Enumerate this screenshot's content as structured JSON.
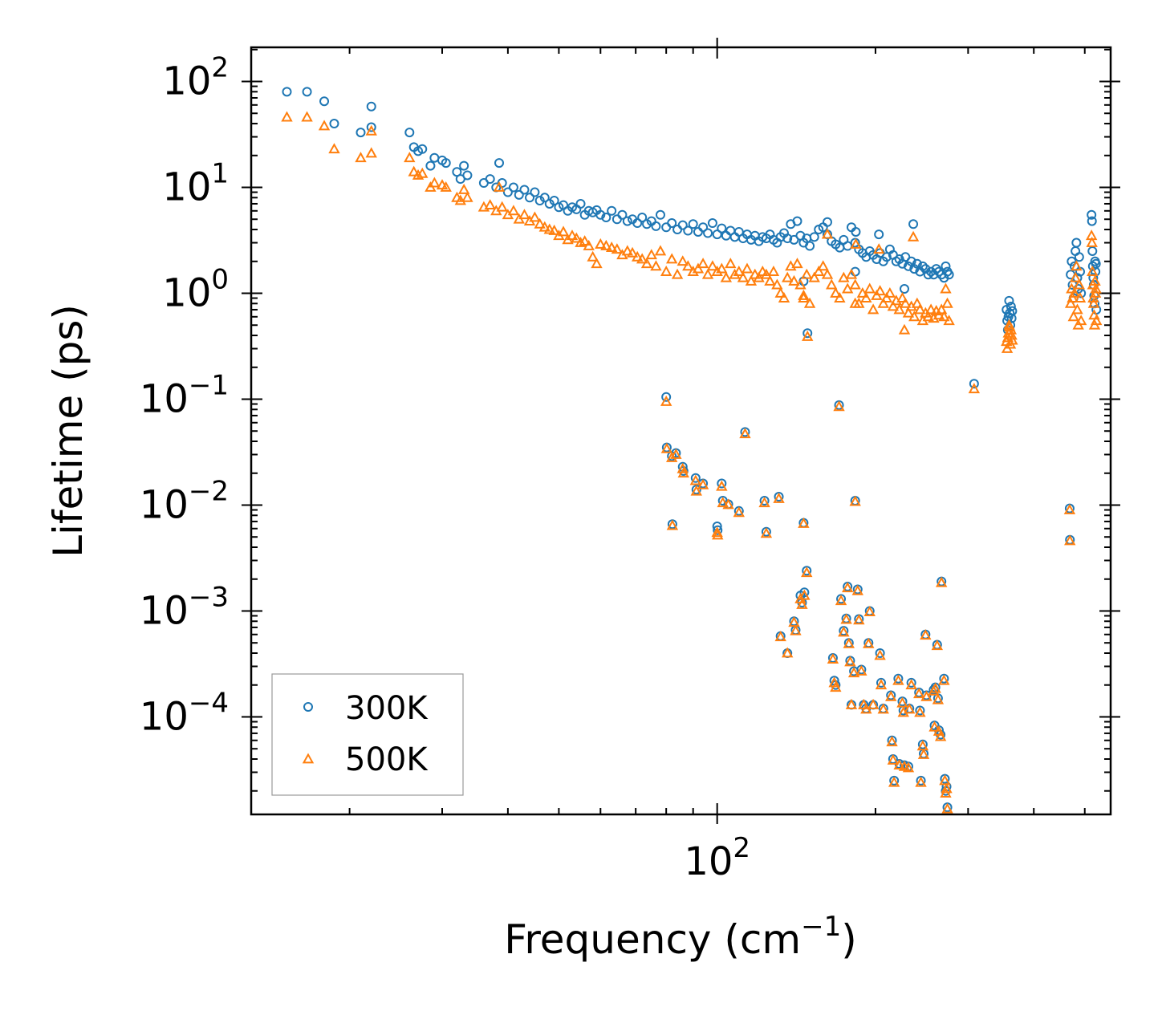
{
  "chart_data": {
    "type": "scatter",
    "xscale": "log",
    "yscale": "log",
    "xlabel": "Frequency (cm",
    "xlabel_superscript": "−1",
    "xlabel_suffix": ")",
    "ylabel": "Lifetime (ps)",
    "xlim": [
      13,
      560
    ],
    "ylim": [
      1.2e-05,
      210
    ],
    "x_tick_labels": [
      {
        "value": 100,
        "base": "10",
        "exp": "2"
      }
    ],
    "y_tick_labels": [
      {
        "value": 100,
        "base": "10",
        "exp": "2"
      },
      {
        "value": 10,
        "base": "10",
        "exp": "1"
      },
      {
        "value": 1,
        "base": "10",
        "exp": "0"
      },
      {
        "value": 0.1,
        "base": "10",
        "exp": "−1"
      },
      {
        "value": 0.01,
        "base": "10",
        "exp": "−2"
      },
      {
        "value": 0.001,
        "base": "10",
        "exp": "−3"
      },
      {
        "value": 0.0001,
        "base": "10",
        "exp": "−4"
      }
    ],
    "legend_position": "lower-left",
    "series": [
      {
        "name": "300K",
        "marker": "circle",
        "color": "#1f77b4"
      },
      {
        "name": "500K",
        "marker": "triangle",
        "color": "#ff7f0e"
      }
    ],
    "points": [
      [
        15.2,
        80,
        46
      ],
      [
        16.6,
        80,
        46
      ],
      [
        17.9,
        65,
        38
      ],
      [
        18.7,
        40,
        23
      ],
      [
        21.0,
        33,
        19
      ],
      [
        22.0,
        37,
        21
      ],
      [
        22.0,
        58,
        34
      ],
      [
        26.0,
        33,
        19
      ],
      [
        26.5,
        24,
        14
      ],
      [
        27.0,
        22,
        13
      ],
      [
        27.5,
        23,
        13.5
      ],
      [
        28.5,
        16,
        10
      ],
      [
        29.0,
        19,
        11
      ],
      [
        30.0,
        18,
        10.5
      ],
      [
        30.5,
        17,
        10
      ],
      [
        32.0,
        14,
        8
      ],
      [
        32.5,
        12,
        7.5
      ],
      [
        33.0,
        16,
        9.5
      ],
      [
        33.5,
        13,
        8
      ],
      [
        36.0,
        11,
        6.5
      ],
      [
        37.0,
        12,
        6.8
      ],
      [
        38.0,
        10,
        6
      ],
      [
        38.5,
        17,
        10
      ],
      [
        39.0,
        11,
        6.5
      ],
      [
        40.0,
        9,
        5.5
      ],
      [
        41.0,
        10,
        6
      ],
      [
        42.0,
        8.5,
        5
      ],
      [
        43.0,
        9.5,
        5.5
      ],
      [
        44.0,
        8,
        4.8
      ],
      [
        45.0,
        9,
        5.2
      ],
      [
        46.0,
        7.5,
        4.5
      ],
      [
        47.0,
        8,
        4.2
      ],
      [
        48.0,
        7,
        4
      ],
      [
        49.0,
        7.5,
        3.9
      ],
      [
        50.0,
        6.5,
        3.5
      ],
      [
        51.0,
        6.8,
        3.8
      ],
      [
        52.0,
        6,
        3.2
      ],
      [
        53.0,
        6.5,
        3.5
      ],
      [
        54.0,
        6.2,
        3.3
      ],
      [
        55.0,
        7,
        3
      ],
      [
        56.0,
        5.5,
        3.1
      ],
      [
        57.0,
        6,
        2.8
      ],
      [
        58.0,
        5.8,
        2.2
      ],
      [
        59.0,
        6.1,
        1.9
      ],
      [
        60.0,
        5.5,
        2.9
      ],
      [
        61.5,
        5.2,
        2.8
      ],
      [
        63.0,
        6,
        2.7
      ],
      [
        64.5,
        5,
        2.6
      ],
      [
        66.0,
        5.5,
        2.3
      ],
      [
        67.5,
        4.8,
        2.5
      ],
      [
        69.0,
        5,
        2.4
      ],
      [
        70.5,
        4.6,
        2.2
      ],
      [
        72.0,
        5.2,
        2.1
      ],
      [
        73.5,
        4.5,
        1.9
      ],
      [
        75.0,
        4.8,
        2.3
      ],
      [
        76.5,
        4.3,
        1.8
      ],
      [
        78.0,
        5.5,
        2.5
      ],
      [
        80.0,
        4.2,
        1.6
      ],
      [
        82.0,
        4.6,
        2.1
      ],
      [
        84.0,
        4,
        1.5
      ],
      [
        86.0,
        4.4,
        2
      ],
      [
        88.0,
        3.9,
        1.8
      ],
      [
        90.0,
        4.5,
        1.6
      ],
      [
        92.0,
        3.8,
        1.7
      ],
      [
        94.0,
        4.2,
        1.9
      ],
      [
        96.0,
        3.7,
        1.5
      ],
      [
        98.0,
        4.6,
        1.8
      ],
      [
        100.0,
        3.6,
        1.6
      ],
      [
        102.0,
        4.1,
        1.7
      ],
      [
        104.0,
        3.5,
        1.4
      ],
      [
        106.0,
        3.9,
        1.9
      ],
      [
        108.0,
        3.4,
        1.5
      ],
      [
        110.0,
        3.8,
        1.6
      ],
      [
        112.0,
        3.3,
        1.4
      ],
      [
        114.0,
        3.6,
        1.7
      ],
      [
        116.0,
        3.2,
        1.3
      ],
      [
        118.0,
        3.5,
        1.5
      ],
      [
        120.0,
        3.1,
        1.4
      ],
      [
        122.0,
        3.4,
        1.6
      ],
      [
        124.0,
        3.3,
        1.5
      ],
      [
        126.0,
        3.6,
        1.3
      ],
      [
        128.0,
        3.2,
        1.6
      ],
      [
        130.0,
        3.0,
        1.2
      ],
      [
        132.0,
        3.4,
        1.0
      ],
      [
        134.0,
        3.7,
        0.9
      ],
      [
        136.0,
        3.3,
        1.4
      ],
      [
        138.0,
        4.5,
        1.8
      ],
      [
        140.0,
        3.2,
        1.3
      ],
      [
        142.0,
        4.8,
        1.9
      ],
      [
        144.0,
        3.5,
        1.2
      ],
      [
        146.0,
        3.0,
        0.9
      ],
      [
        148.0,
        3.3,
        1.5
      ],
      [
        150.0,
        2.8,
        0.8
      ],
      [
        153.0,
        3.4,
        1.4
      ],
      [
        156.0,
        4.0,
        1.6
      ],
      [
        159.0,
        4.2,
        1.8
      ],
      [
        162.0,
        3.6,
        1.5
      ],
      [
        165.0,
        3.1,
        1.2
      ],
      [
        168.0,
        2.9,
        1.0
      ],
      [
        171.0,
        2.7,
        0.9
      ],
      [
        174.0,
        3.2,
        1.4
      ],
      [
        177.0,
        2.8,
        1.1
      ],
      [
        180.0,
        4.2,
        1.5
      ],
      [
        183.0,
        3.0,
        1.2
      ],
      [
        186.0,
        2.6,
        0.8
      ],
      [
        189.0,
        2.4,
        1.0
      ],
      [
        192.0,
        2.2,
        0.9
      ],
      [
        195.0,
        2.5,
        1.1
      ],
      [
        198.0,
        2.3,
        0.7
      ],
      [
        201.0,
        2.1,
        0.95
      ],
      [
        204.0,
        2.4,
        1.05
      ],
      [
        207.0,
        2.0,
        0.8
      ],
      [
        210.0,
        2.2,
        0.9
      ],
      [
        213.0,
        2.6,
        1.0
      ],
      [
        216.0,
        2.3,
        0.75
      ],
      [
        219.0,
        2.0,
        0.85
      ],
      [
        222.0,
        2.1,
        0.7
      ],
      [
        225.0,
        1.9,
        0.9
      ],
      [
        228.0,
        2.2,
        0.8
      ],
      [
        231.0,
        1.8,
        0.65
      ],
      [
        234.0,
        2.0,
        0.75
      ],
      [
        237.0,
        1.7,
        0.6
      ],
      [
        240.0,
        1.9,
        0.8
      ],
      [
        243.0,
        1.6,
        0.7
      ],
      [
        246.0,
        1.8,
        0.55
      ],
      [
        249.0,
        1.7,
        0.65
      ],
      [
        252.0,
        1.5,
        0.6
      ],
      [
        255.0,
        1.6,
        0.7
      ],
      [
        258.0,
        1.5,
        0.58
      ],
      [
        261.0,
        1.7,
        0.68
      ],
      [
        264.0,
        1.6,
        0.62
      ],
      [
        267.0,
        1.5,
        0.7
      ],
      [
        270.0,
        1.4,
        0.6
      ],
      [
        272.0,
        1.8,
        1.1
      ],
      [
        274.0,
        1.6,
        0.8
      ],
      [
        276.0,
        1.5,
        0.55
      ],
      [
        227.0,
        1.1,
        0.45
      ],
      [
        146.0,
        1.3,
        0.95
      ],
      [
        148.5,
        0.42,
        0.39
      ],
      [
        183.0,
        1.6,
        0.8
      ],
      [
        236.0,
        4.5,
        3.4
      ],
      [
        183.5,
        3.8,
        2.9
      ],
      [
        203.0,
        3.6,
        2.6
      ],
      [
        162.0,
        4.7,
        3.6
      ],
      [
        355.0,
        0.7,
        0.35
      ],
      [
        356.0,
        0.55,
        0.3
      ],
      [
        357.0,
        0.45,
        0.38
      ],
      [
        358.0,
        0.6,
        0.42
      ],
      [
        359.0,
        0.85,
        0.5
      ],
      [
        360.0,
        0.65,
        0.48
      ],
      [
        361.0,
        0.5,
        0.33
      ],
      [
        362.0,
        0.75,
        0.45
      ],
      [
        363.0,
        0.58,
        0.4
      ],
      [
        364.0,
        0.68,
        0.36
      ],
      [
        470.0,
        1.5,
        0.8
      ],
      [
        472.0,
        2.0,
        1.1
      ],
      [
        474.0,
        1.2,
        0.9
      ],
      [
        476.0,
        0.9,
        0.6
      ],
      [
        478.0,
        1.8,
        1.0
      ],
      [
        480.0,
        2.5,
        1.4
      ],
      [
        482.0,
        3.0,
        1.8
      ],
      [
        484.0,
        1.4,
        0.7
      ],
      [
        486.0,
        1.1,
        0.5
      ],
      [
        488.0,
        2.2,
        1.2
      ],
      [
        490.0,
        1.6,
        0.9
      ],
      [
        492.0,
        1.0,
        0.55
      ],
      [
        515.0,
        5.5,
        3.5
      ],
      [
        516.0,
        4.8,
        3.0
      ],
      [
        517.0,
        2.5,
        1.6
      ],
      [
        518.0,
        1.8,
        1.2
      ],
      [
        519.0,
        1.4,
        0.9
      ],
      [
        520.0,
        1.2,
        0.8
      ],
      [
        521.0,
        0.95,
        0.62
      ],
      [
        522.0,
        0.8,
        0.5
      ],
      [
        523.0,
        2.0,
        1.3
      ],
      [
        524.0,
        1.6,
        1.0
      ],
      [
        525.0,
        1.9,
        1.1
      ],
      [
        526.0,
        0.7,
        0.55
      ],
      [
        80.0,
        0.105,
        0.095
      ],
      [
        80.2,
        0.035,
        0.034
      ],
      [
        82.0,
        0.029,
        0.028
      ],
      [
        82.2,
        0.0066,
        0.0064
      ],
      [
        83.5,
        0.031,
        0.03
      ],
      [
        86.0,
        0.023,
        0.022
      ],
      [
        86.3,
        0.021,
        0.02
      ],
      [
        91.0,
        0.018,
        0.017
      ],
      [
        91.3,
        0.014,
        0.0135
      ],
      [
        94.0,
        0.016,
        0.0155
      ],
      [
        100.0,
        0.0063,
        0.0055
      ],
      [
        100.2,
        0.0058,
        0.0052
      ],
      [
        102.0,
        0.016,
        0.015
      ],
      [
        102.5,
        0.011,
        0.0105
      ],
      [
        105.0,
        0.0102,
        0.0101
      ],
      [
        110.0,
        0.0088,
        0.0085
      ],
      [
        113.0,
        0.049,
        0.047
      ],
      [
        123.0,
        0.011,
        0.0105
      ],
      [
        124.0,
        0.0056,
        0.0054
      ],
      [
        131.0,
        0.012,
        0.0115
      ],
      [
        146.0,
        0.0068,
        0.0067
      ],
      [
        170.5,
        0.088,
        0.085
      ],
      [
        183.0,
        0.011,
        0.0108
      ],
      [
        308.0,
        0.14,
        0.125
      ],
      [
        468.0,
        0.0093,
        0.009
      ],
      [
        468.5,
        0.0047,
        0.0046
      ],
      [
        132.0,
        0.00058,
        0.00057
      ],
      [
        136.0,
        0.0004,
        0.0004
      ],
      [
        140.0,
        0.0008,
        0.00078
      ],
      [
        141.0,
        0.00066,
        0.00065
      ],
      [
        144.0,
        0.0014,
        0.0013
      ],
      [
        145.0,
        0.0012,
        0.00115
      ],
      [
        146.5,
        0.0015,
        0.0014
      ],
      [
        148.0,
        0.0024,
        0.0023
      ],
      [
        166.0,
        0.00036,
        0.00035
      ],
      [
        167.0,
        0.00022,
        0.00021
      ],
      [
        168.0,
        0.0002,
        0.00019
      ],
      [
        172.0,
        0.0013,
        0.00125
      ],
      [
        174.0,
        0.00065,
        0.00063
      ],
      [
        176.0,
        0.00085,
        0.00083
      ],
      [
        177.0,
        0.0017,
        0.00165
      ],
      [
        178.0,
        0.0005,
        0.00049
      ],
      [
        179.0,
        0.00034,
        0.00033
      ],
      [
        180.0,
        0.00013,
        0.00013
      ],
      [
        182.0,
        0.00027,
        0.00026
      ],
      [
        185.0,
        0.0016,
        0.00155
      ],
      [
        186.0,
        0.00084,
        0.00082
      ],
      [
        188.0,
        0.00028,
        0.00027
      ],
      [
        190.0,
        0.00013,
        0.00013
      ],
      [
        192.0,
        0.00012,
        0.000118
      ],
      [
        194.0,
        0.0005,
        0.00049
      ],
      [
        195.0,
        0.001,
        0.00098
      ],
      [
        198.0,
        0.00013,
        0.00013
      ],
      [
        204.0,
        0.0004,
        0.00038
      ],
      [
        205.0,
        0.00021,
        0.0002
      ],
      [
        207.0,
        0.00012,
        0.000118
      ],
      [
        214.0,
        0.00016,
        0.000155
      ],
      [
        215.0,
        6e-05,
        5.8e-05
      ],
      [
        216.0,
        4e-05,
        3.9e-05
      ],
      [
        217.0,
        2.5e-05,
        2.4e-05
      ],
      [
        221.0,
        0.00023,
        0.00022
      ],
      [
        222.0,
        3.6e-05,
        3.5e-05
      ],
      [
        225.0,
        0.00014,
        0.000135
      ],
      [
        226.0,
        0.000115,
        0.00011
      ],
      [
        227.0,
        3.5e-05,
        3.4e-05
      ],
      [
        231.0,
        3.4e-05,
        3.3e-05
      ],
      [
        232.0,
        0.00012,
        0.000118
      ],
      [
        234.0,
        0.00021,
        0.0002
      ],
      [
        242.0,
        0.00017,
        0.000165
      ],
      [
        243.0,
        0.000115,
        0.00011
      ],
      [
        244.0,
        2.5e-05,
        2.4e-05
      ],
      [
        246.0,
        5.5e-05,
        5.3e-05
      ],
      [
        247.0,
        4.5e-05,
        4.4e-05
      ],
      [
        249.0,
        0.0006,
        0.00059
      ],
      [
        250.0,
        0.00016,
        0.000155
      ],
      [
        258.0,
        0.00018,
        0.000175
      ],
      [
        259.0,
        8.3e-05,
        8e-05
      ],
      [
        260.0,
        0.00019,
        0.000185
      ],
      [
        262.0,
        0.00048,
        0.00047
      ],
      [
        263.0,
        0.00015,
        0.000145
      ],
      [
        264.0,
        7.5e-05,
        7.3e-05
      ],
      [
        266.0,
        6.8e-05,
        6.5e-05
      ],
      [
        267.0,
        0.0019,
        0.00185
      ],
      [
        270.0,
        0.00023,
        0.00022
      ],
      [
        271.0,
        2.6e-05,
        2.5e-05
      ],
      [
        272.0,
        2e-05,
        1.9e-05
      ],
      [
        273.0,
        2.2e-05,
        2.1e-05
      ],
      [
        274.0,
        1.4e-05,
        1.35e-05
      ]
    ]
  }
}
